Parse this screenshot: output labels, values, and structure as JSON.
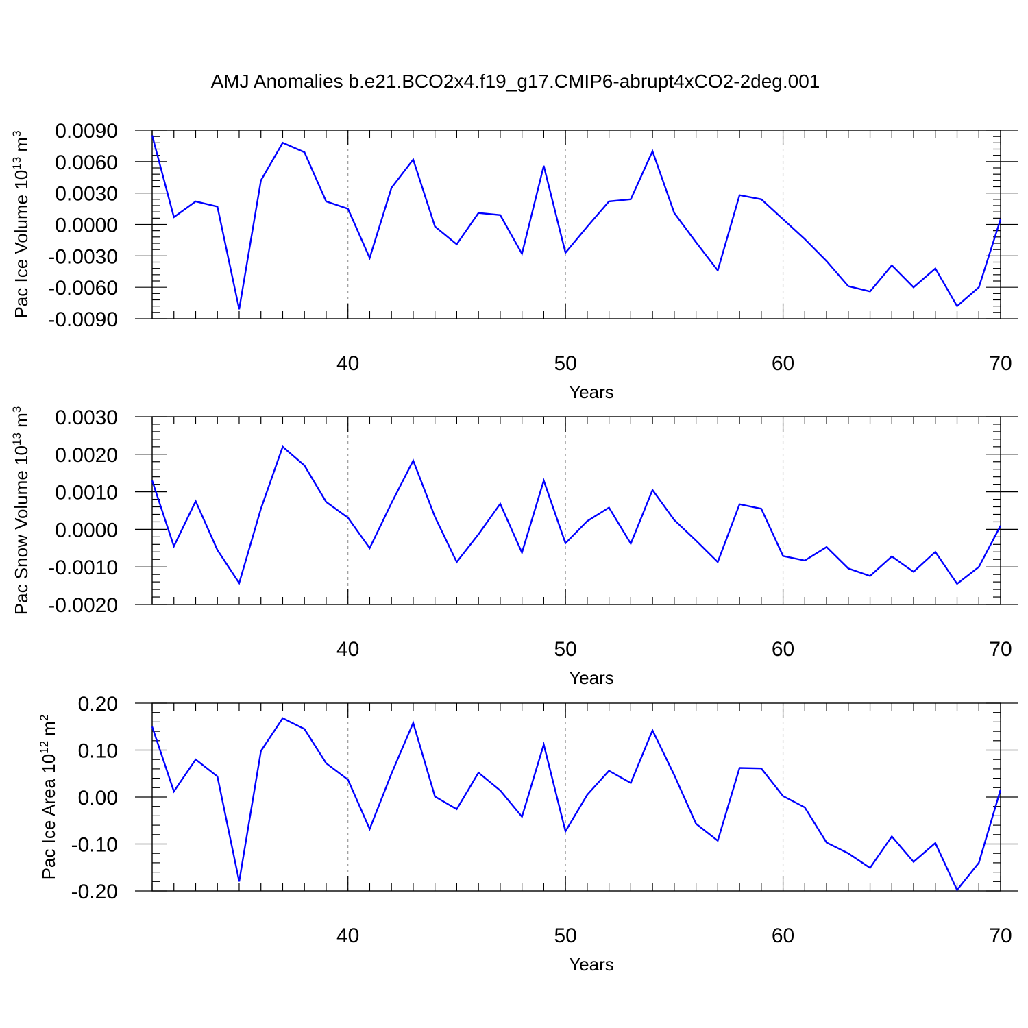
{
  "title": "AMJ Anomalies b.e21.BCO2x4.f19_g17.CMIP6-abrupt4xCO2-2deg.001",
  "chart_data": [
    {
      "type": "line",
      "title": "AMJ Anomalies b.e21.BCO2x4.f19_g17.CMIP6-abrupt4xCO2-2deg.001",
      "ylabel": {
        "text": "Pac Ice Volume 10",
        "exponent": "13",
        "unit": "m",
        "unit_exponent": "3"
      },
      "xlabel": "Years",
      "xlim": [
        31,
        70
      ],
      "ylim": [
        -0.009,
        0.009
      ],
      "xticks": [
        40,
        50,
        60,
        70
      ],
      "yticks": [
        "-0.0090",
        "-0.0060",
        "-0.0030",
        "0.0000",
        "0.0030",
        "0.0060",
        "0.0090"
      ],
      "grid": "vertical dashed at major x ticks",
      "line_color": "#0000ff",
      "x": [
        31,
        32,
        33,
        34,
        35,
        36,
        37,
        38,
        39,
        40,
        41,
        42,
        43,
        44,
        45,
        46,
        47,
        48,
        49,
        50,
        51,
        52,
        53,
        54,
        55,
        56,
        57,
        58,
        59,
        60,
        61,
        62,
        63,
        64,
        65,
        66,
        67,
        68,
        69,
        70
      ],
      "y": [
        0.0085,
        0.0007,
        0.0022,
        0.0017,
        -0.0081,
        0.0042,
        0.0078,
        0.0069,
        0.0022,
        0.0015,
        -0.0032,
        0.0035,
        0.0062,
        -0.0002,
        -0.0019,
        0.0011,
        0.0009,
        -0.0028,
        0.0056,
        -0.0027,
        -0.0002,
        0.0022,
        0.0024,
        0.007,
        0.0011,
        -0.0017,
        -0.0044,
        0.0028,
        0.0024,
        0.0005,
        -0.0014,
        -0.0035,
        -0.0059,
        -0.0064,
        -0.0039,
        -0.006,
        -0.0042,
        -0.0078,
        -0.006,
        0.0005
      ]
    },
    {
      "type": "line",
      "ylabel": {
        "text": "Pac Snow Volume 10",
        "exponent": "13",
        "unit": "m",
        "unit_exponent": "3"
      },
      "xlabel": "Years",
      "xlim": [
        31,
        70
      ],
      "ylim": [
        -0.002,
        0.003
      ],
      "xticks": [
        40,
        50,
        60,
        70
      ],
      "yticks": [
        "-0.0020",
        "-0.0010",
        "0.0000",
        "0.0010",
        "0.0020",
        "0.0030"
      ],
      "grid": "vertical dashed at major x ticks",
      "line_color": "#0000ff",
      "x": [
        31,
        32,
        33,
        34,
        35,
        36,
        37,
        38,
        39,
        40,
        41,
        42,
        43,
        44,
        45,
        46,
        47,
        48,
        49,
        50,
        51,
        52,
        53,
        54,
        55,
        56,
        57,
        58,
        59,
        60,
        61,
        62,
        63,
        64,
        65,
        66,
        67,
        68,
        69,
        70
      ],
      "y": [
        0.0013,
        -0.00045,
        0.00075,
        -0.00055,
        -0.00143,
        0.00055,
        0.0022,
        0.0017,
        0.00073,
        0.00031,
        -0.0005,
        0.0007,
        0.00183,
        0.00033,
        -0.00087,
        -0.00013,
        0.00068,
        -0.00062,
        0.0013,
        -0.00037,
        0.00022,
        0.00058,
        -0.00038,
        0.00105,
        0.00025,
        -0.0003,
        -0.00087,
        0.00067,
        0.00055,
        -0.00071,
        -0.00083,
        -0.00047,
        -0.00104,
        -0.00124,
        -0.00072,
        -0.00113,
        -0.0006,
        -0.00145,
        -0.001,
        0.0001
      ]
    },
    {
      "type": "line",
      "ylabel": {
        "text": "Pac Ice Area 10",
        "exponent": "12",
        "unit": "m",
        "unit_exponent": "2"
      },
      "xlabel": "Years",
      "xlim": [
        31,
        70
      ],
      "ylim": [
        -0.2,
        0.2
      ],
      "xticks": [
        40,
        50,
        60,
        70
      ],
      "yticks": [
        "-0.20",
        "-0.10",
        "0.00",
        "0.10",
        "0.20"
      ],
      "grid": "vertical dashed at major x ticks",
      "line_color": "#0000ff",
      "x": [
        31,
        32,
        33,
        34,
        35,
        36,
        37,
        38,
        39,
        40,
        41,
        42,
        43,
        44,
        45,
        46,
        47,
        48,
        49,
        50,
        51,
        52,
        53,
        54,
        55,
        56,
        57,
        58,
        59,
        60,
        61,
        62,
        63,
        64,
        65,
        66,
        67,
        68,
        69,
        70
      ],
      "y": [
        0.15,
        0.012,
        0.08,
        0.044,
        -0.18,
        0.098,
        0.168,
        0.145,
        0.072,
        0.037,
        -0.068,
        0.05,
        0.158,
        0.001,
        -0.026,
        0.052,
        0.014,
        -0.042,
        0.112,
        -0.073,
        0.005,
        0.056,
        0.03,
        0.142,
        0.047,
        -0.057,
        -0.093,
        0.062,
        0.061,
        0.002,
        -0.022,
        -0.097,
        -0.12,
        -0.151,
        -0.084,
        -0.138,
        -0.098,
        -0.198,
        -0.14,
        0.016
      ]
    }
  ]
}
